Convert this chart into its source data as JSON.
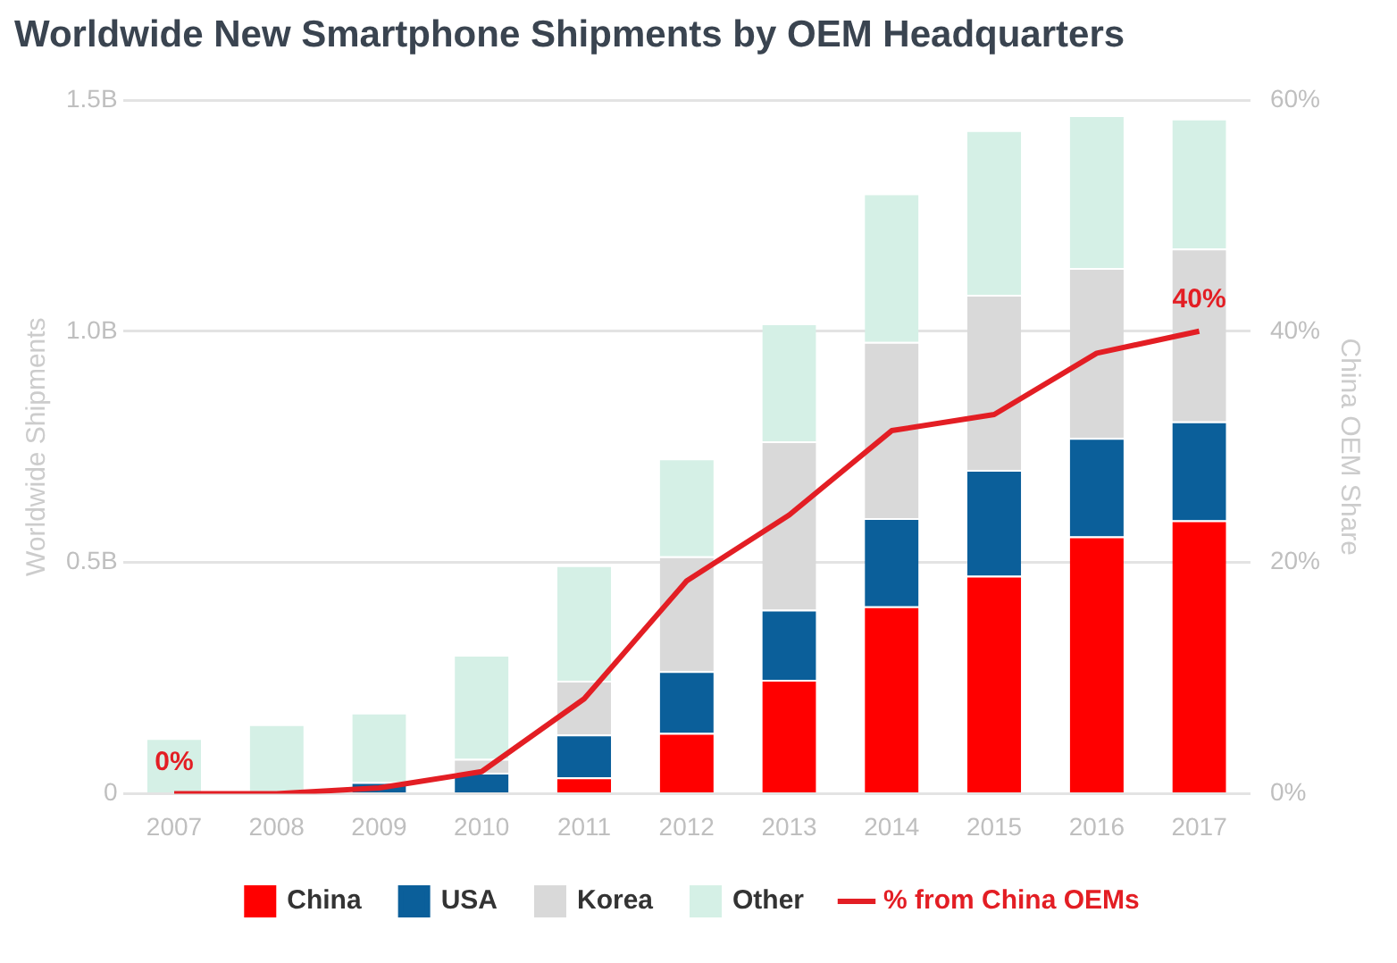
{
  "chart_data": {
    "type": "bar",
    "title": "Worldwide New Smartphone Shipments by OEM Headquarters",
    "ylabel": "Worldwide Shipments",
    "y2label": "China OEM Share",
    "categories": [
      "2007",
      "2008",
      "2009",
      "2010",
      "2011",
      "2012",
      "2013",
      "2014",
      "2015",
      "2016",
      "2017"
    ],
    "stacked": true,
    "series": [
      {
        "name": "China",
        "color": "#ff0000",
        "values": [
          0,
          0,
          0,
          null,
          0.035,
          0.131,
          0.246,
          0.405,
          0.471,
          0.556,
          0.591
        ]
      },
      {
        "name": "USA",
        "color": "#0b5f9a",
        "values": [
          0,
          0,
          0.025,
          0.045,
          0.093,
          0.134,
          0.152,
          0.191,
          0.229,
          0.213,
          0.214
        ]
      },
      {
        "name": "Korea",
        "color": "#d9d9d9",
        "values": [
          0,
          0,
          null,
          0.03,
          0.116,
          0.248,
          0.364,
          0.381,
          0.379,
          0.368,
          0.374
        ]
      },
      {
        "name": "Other",
        "color": "#d5f0e6",
        "values": [
          0.12,
          0.15,
          0.15,
          0.225,
          0.25,
          0.212,
          0.255,
          0.321,
          0.356,
          0.33,
          0.281
        ]
      },
      {
        "name": "% from China OEMs",
        "type": "line",
        "axis": "y2",
        "color": "#e31e24",
        "values": [
          0,
          0,
          0.5,
          1.9,
          8.2,
          18.4,
          24.1,
          31.4,
          32.8,
          38.1,
          40
        ],
        "value_labels": [
          "0%",
          null,
          null,
          null,
          null,
          null,
          null,
          null,
          null,
          null,
          "40%"
        ]
      }
    ],
    "ylim": [
      0,
      1.5
    ],
    "yticks": [
      {
        "value": 0,
        "label": "0"
      },
      {
        "value": 0.5,
        "label": "0.5B"
      },
      {
        "value": 1,
        "label": "1.0B"
      },
      {
        "value": 1.5,
        "label": "1.5B"
      }
    ],
    "y2lim": [
      0,
      60
    ],
    "y2ticks": [
      {
        "value": 0,
        "label": "0%"
      },
      {
        "value": 20,
        "label": "20%"
      },
      {
        "value": 40,
        "label": "40%"
      },
      {
        "value": 60,
        "label": "60%"
      }
    ],
    "grid": "y",
    "legend": "bottom",
    "marker": "none",
    "line_style": "solid"
  }
}
